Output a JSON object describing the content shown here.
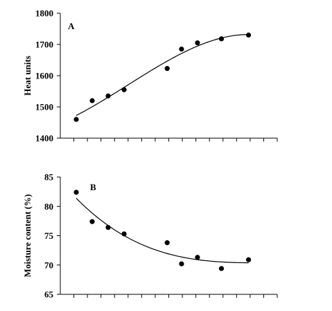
{
  "chart_data": [
    {
      "type": "scatter",
      "panel_label": "A",
      "ylabel": "Heat units",
      "xlabel": "",
      "ylim": [
        1400,
        1800
      ],
      "yticks": [
        1400,
        1500,
        1600,
        1700,
        1800
      ],
      "x_ticks_labeled": false,
      "points": [
        {
          "x": 1,
          "y": 1460
        },
        {
          "x": 2,
          "y": 1520
        },
        {
          "x": 3,
          "y": 1535
        },
        {
          "x": 4,
          "y": 1555
        },
        {
          "x": 6.7,
          "y": 1623
        },
        {
          "x": 7.6,
          "y": 1685
        },
        {
          "x": 8.6,
          "y": 1705
        },
        {
          "x": 10.1,
          "y": 1718
        },
        {
          "x": 11.8,
          "y": 1730
        }
      ],
      "fit_curve": "polynomial trend line",
      "fit_range": [
        1,
        11.8
      ],
      "fit_start_y": 1473,
      "fit_end_y": 1729
    },
    {
      "type": "scatter",
      "panel_label": "B",
      "ylabel": "Moisture content (%)",
      "xlabel": "",
      "ylim": [
        65,
        85
      ],
      "yticks": [
        65,
        70,
        75,
        80,
        85
      ],
      "x_ticks_labeled": false,
      "points": [
        {
          "x": 1,
          "y": 82.4
        },
        {
          "x": 2,
          "y": 77.4
        },
        {
          "x": 3,
          "y": 76.4
        },
        {
          "x": 4,
          "y": 75.3
        },
        {
          "x": 6.7,
          "y": 73.8
        },
        {
          "x": 7.6,
          "y": 70.2
        },
        {
          "x": 8.6,
          "y": 71.3
        },
        {
          "x": 10.1,
          "y": 69.4
        },
        {
          "x": 11.8,
          "y": 70.9
        }
      ],
      "fit_curve": "polynomial trend line",
      "fit_range": [
        1,
        11.8
      ],
      "fit_start_y": 81.2,
      "fit_end_y": 70.4
    }
  ]
}
